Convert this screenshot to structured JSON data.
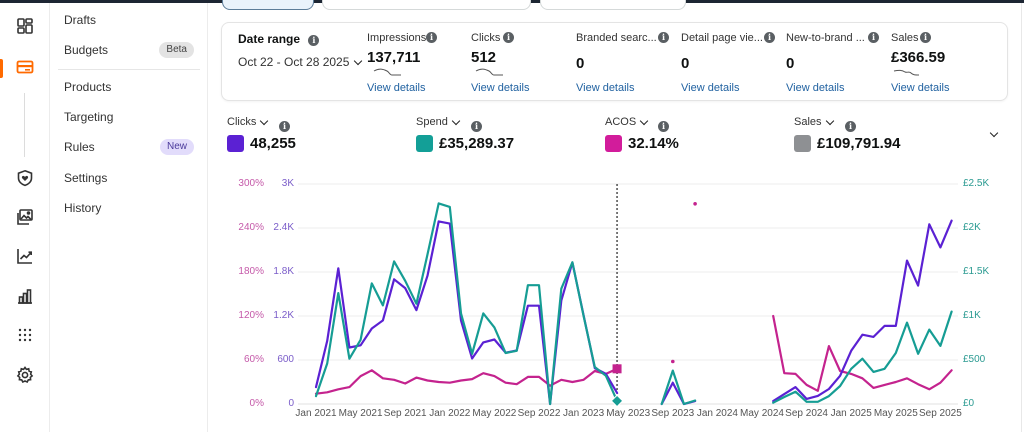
{
  "rail": {
    "icons": [
      "dashboard-icon",
      "campaigns-card-icon",
      "brand-shield-icon",
      "media-images-icon",
      "trend-chart-icon",
      "bar-chart-icon",
      "apps-grid-icon",
      "settings-gear-icon"
    ],
    "active_color": "#ff6a00"
  },
  "nav": {
    "items": [
      {
        "label": "Drafts",
        "badge": null
      },
      {
        "label": "Budgets",
        "badge": "Beta"
      },
      {
        "label": "Products",
        "badge": null
      },
      {
        "label": "Targeting",
        "badge": null
      },
      {
        "label": "Rules",
        "badge": "New"
      },
      {
        "label": "Settings",
        "badge": null
      },
      {
        "label": "History",
        "badge": null
      }
    ]
  },
  "summary": {
    "date_range_label": "Date range",
    "date_range_value": "Oct 22 - Oct 28 2025",
    "metrics": [
      {
        "label": "Impressions",
        "value": "137,711",
        "link": "View details",
        "sparkline": true
      },
      {
        "label": "Clicks",
        "value": "512",
        "link": "View details",
        "sparkline": true
      },
      {
        "label": "Branded searc...",
        "value": "0",
        "link": "View details",
        "sparkline": false
      },
      {
        "label": "Detail page vie...",
        "value": "0",
        "link": "View details",
        "sparkline": false
      },
      {
        "label": "New-to-brand ...",
        "value": "0",
        "link": "View details",
        "sparkline": false
      },
      {
        "label": "Sales",
        "value": "£366.59",
        "link": "View details",
        "sparkline": true
      }
    ]
  },
  "selectors": [
    {
      "label": "Clicks",
      "value": "48,255",
      "color": "#5b21d3"
    },
    {
      "label": "Spend",
      "value": "£35,289.37",
      "color": "#139f97"
    },
    {
      "label": "ACOS",
      "value": "32.14%",
      "color": "#d21c9b"
    },
    {
      "label": "Sales",
      "value": "£109,791.94",
      "color": "#8e9093"
    }
  ],
  "chart_data": {
    "type": "line",
    "title": "",
    "xlabel": "",
    "ylabel": "",
    "grid": true,
    "hover_month": "Apr 2023",
    "x": [
      "Jan 2021",
      "Feb 2021",
      "Mar 2021",
      "Apr 2021",
      "May 2021",
      "Jun 2021",
      "Jul 2021",
      "Aug 2021",
      "Sep 2021",
      "Oct 2021",
      "Nov 2021",
      "Dec 2021",
      "Jan 2022",
      "Feb 2022",
      "Mar 2022",
      "Apr 2022",
      "May 2022",
      "Jun 2022",
      "Jul 2022",
      "Aug 2022",
      "Sep 2022",
      "Oct 2022",
      "Nov 2022",
      "Dec 2022",
      "Jan 2023",
      "Feb 2023",
      "Mar 2023",
      "Apr 2023",
      "May 2023",
      "Jun 2023",
      "Jul 2023",
      "Aug 2023",
      "Sep 2023",
      "Oct 2023",
      "Nov 2023",
      "Dec 2023",
      "Jan 2024",
      "Feb 2024",
      "Mar 2024",
      "Apr 2024",
      "May 2024",
      "Jun 2024",
      "Jul 2024",
      "Aug 2024",
      "Sep 2024",
      "Oct 2024",
      "Nov 2024",
      "Dec 2024",
      "Jan 2025",
      "Feb 2025",
      "Mar 2025",
      "Apr 2025",
      "May 2025",
      "Jun 2025",
      "Jul 2025",
      "Aug 2025",
      "Sep 2025",
      "Oct 2025"
    ],
    "x_tick_labels": [
      "Jan 2021",
      "May 2021",
      "Sep 2021",
      "Jan 2022",
      "May 2022",
      "Sep 2022",
      "Jan 2023",
      "May 2023",
      "Sep 2023",
      "Jan 2024",
      "May 2024",
      "Sep 2024",
      "Jan 2025",
      "May 2025",
      "Sep 2025"
    ],
    "axes": {
      "acos": {
        "range": [
          0,
          300
        ],
        "ticks": [
          "0%",
          "60%",
          "120%",
          "180%",
          "240%",
          "300%"
        ],
        "position": "left-outer"
      },
      "clicks": {
        "range": [
          0,
          3000
        ],
        "ticks": [
          "0",
          "600",
          "1.2K",
          "1.8K",
          "2.4K",
          "3K"
        ],
        "position": "left-inner"
      },
      "spend": {
        "range": [
          0,
          2500
        ],
        "ticks": [
          "£0",
          "£500",
          "£1K",
          "£1.5K",
          "£2K",
          "£2.5K"
        ],
        "position": "right"
      }
    },
    "series": [
      {
        "name": "Clicks",
        "axis": "clicks",
        "color": "#5b21d3",
        "values": [
          230,
          860,
          1850,
          770,
          800,
          1030,
          1140,
          1700,
          1580,
          1280,
          1750,
          2490,
          2460,
          1140,
          620,
          840,
          880,
          700,
          730,
          1340,
          1340,
          0,
          1410,
          1930,
          1210,
          490,
          410,
          150,
          null,
          null,
          null,
          0,
          290,
          0,
          40,
          null,
          null,
          null,
          null,
          null,
          null,
          40,
          135,
          230,
          70,
          110,
          205,
          385,
          725,
          945,
          915,
          1065,
          1065,
          1955,
          1615,
          2450,
          2135,
          2500
        ]
      },
      {
        "name": "Spend",
        "axis": "spend",
        "color": "#169d94",
        "values": [
          90,
          460,
          1260,
          515,
          730,
          1370,
          1120,
          1620,
          1400,
          1140,
          1700,
          2280,
          2240,
          1030,
          570,
          1030,
          870,
          580,
          605,
          1350,
          1350,
          0,
          1310,
          1610,
          1000,
          420,
          320,
          35,
          null,
          null,
          null,
          0,
          380,
          0,
          40,
          null,
          null,
          null,
          null,
          null,
          null,
          15,
          80,
          140,
          25,
          25,
          90,
          205,
          400,
          515,
          365,
          400,
          580,
          925,
          570,
          845,
          660,
          1050
        ]
      },
      {
        "name": "ACOS",
        "axis": "acos",
        "color": "#c4238e",
        "values": [
          14,
          16,
          20,
          23,
          38,
          46,
          35,
          33,
          28,
          36,
          32,
          30,
          29,
          32,
          34,
          42,
          38,
          29,
          27,
          37,
          37,
          25,
          33,
          30,
          33,
          45,
          41,
          48,
          null,
          null,
          null,
          null,
          58,
          null,
          273,
          null,
          null,
          null,
          null,
          null,
          null,
          120,
          42,
          41,
          26,
          18,
          79,
          45,
          41,
          35,
          22,
          26,
          30,
          35,
          27,
          20,
          29,
          46
        ]
      }
    ]
  }
}
